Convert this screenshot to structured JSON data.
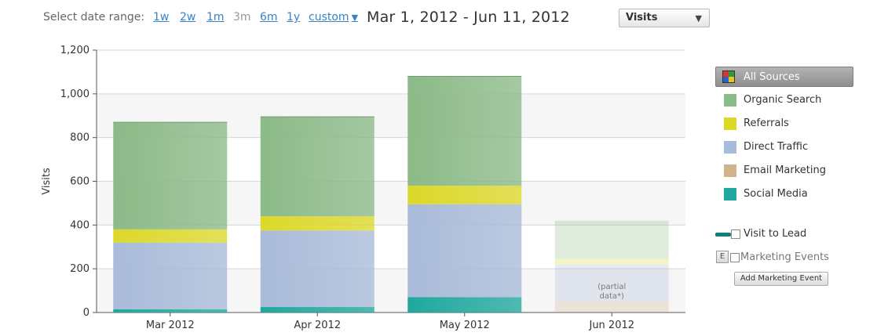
{
  "header": {
    "range_label": "Select date range:",
    "range_options": [
      "1w",
      "2w",
      "1m",
      "3m",
      "6m",
      "1y",
      "custom"
    ],
    "active_range": "3m",
    "date_range": "Mar 1, 2012 - Jun 11, 2012",
    "metric_select": "Visits"
  },
  "chart_data": {
    "type": "bar",
    "stacked": true,
    "categories": [
      "Mar 2012",
      "Apr 2012",
      "May 2012",
      "Jun 2012"
    ],
    "ylabel": "Visits",
    "xlabel": "",
    "ylim": [
      0,
      1200
    ],
    "yticks": [
      0,
      200,
      400,
      600,
      800,
      1000,
      1200
    ],
    "ytick_labels": [
      "0",
      "200",
      "400",
      "600",
      "800",
      "1,000",
      "1,200"
    ],
    "grid": true,
    "partial_category": "Jun 2012",
    "partial_note": "(partial\ndata*)",
    "series": [
      {
        "name": "Social Media",
        "color": "#20a89e",
        "values": [
          15,
          25,
          70,
          0
        ]
      },
      {
        "name": "Email Marketing",
        "color": "#d2b48c",
        "values": [
          0,
          0,
          0,
          50
        ]
      },
      {
        "name": "Direct Traffic",
        "color": "#a9bbd9",
        "values": [
          305,
          350,
          425,
          170
        ]
      },
      {
        "name": "Referrals",
        "color": "#dcd82a",
        "values": [
          60,
          65,
          85,
          25
        ]
      },
      {
        "name": "Organic Search",
        "color": "#8cba88",
        "values": [
          490,
          455,
          500,
          175
        ]
      }
    ]
  },
  "legend": {
    "all_sources": "All Sources",
    "items": [
      {
        "label": "Organic Search",
        "color": "#8cba88"
      },
      {
        "label": "Referrals",
        "color": "#dcd82a"
      },
      {
        "label": "Direct Traffic",
        "color": "#a9bbd9"
      },
      {
        "label": "Email Marketing",
        "color": "#d2b48c"
      },
      {
        "label": "Social Media",
        "color": "#20a89e"
      }
    ],
    "visit_to_lead": "Visit to Lead",
    "marketing_events": "Marketing Events",
    "e_badge": "E",
    "add_event_button": "Add Marketing Event"
  }
}
